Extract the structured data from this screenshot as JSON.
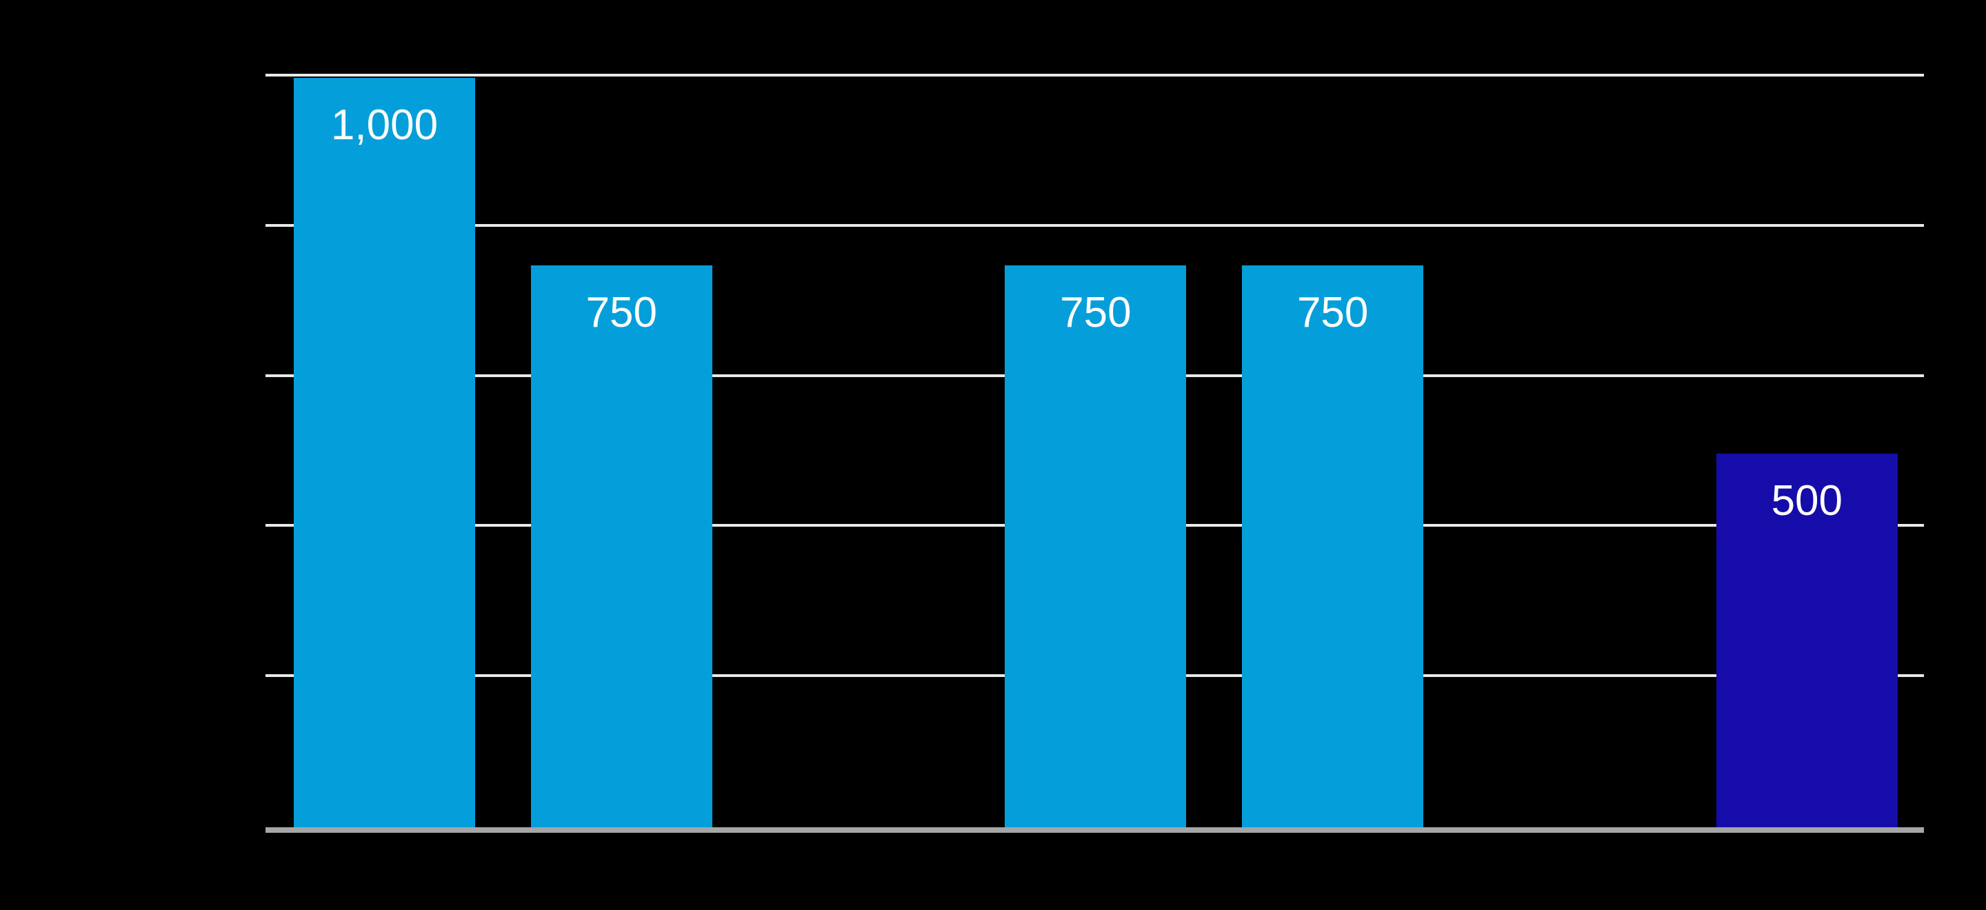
{
  "chart_data": {
    "type": "bar",
    "title": "",
    "slot_count": 7,
    "bars": [
      {
        "slot": 0,
        "value": 1000,
        "label": "1,000",
        "color": "light_blue"
      },
      {
        "slot": 1,
        "value": 750,
        "label": "750",
        "color": "light_blue"
      },
      {
        "slot": 3,
        "value": 750,
        "label": "750",
        "color": "light_blue"
      },
      {
        "slot": 4,
        "value": 750,
        "label": "750",
        "color": "light_blue"
      },
      {
        "slot": 6,
        "value": 500,
        "label": "500",
        "color": "dark_blue"
      }
    ],
    "y_axis": {
      "min": 0,
      "max": 1000,
      "gridline_values": [
        200,
        400,
        600,
        800,
        1000
      ],
      "tick_labels_visible": false
    },
    "x_axis": {
      "tick_labels_visible": false
    },
    "legend": {
      "visible": false
    },
    "colors": {
      "light_blue": "#049EDB",
      "dark_blue": "#150CA9",
      "gridline": "#E9E9E9",
      "axis_line": "#A5A6A8",
      "background": "#000000",
      "bar_label": "#FFFFFF"
    }
  }
}
